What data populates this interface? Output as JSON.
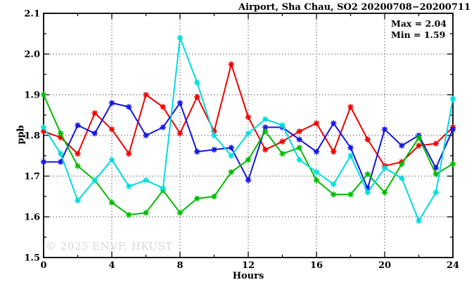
{
  "watermark": "© 2025 ENVF, HKUST",
  "chart_data": {
    "type": "line",
    "title": "Airport, Sha Chau, SO2 20200708−20200711",
    "xlabel": "Hours",
    "ylabel": "ppb",
    "xlim": [
      0,
      24
    ],
    "ylim": [
      1.5,
      2.1
    ],
    "legend_position": "none",
    "grid_on": true,
    "annotations": {
      "max_label": "Max = 2.04",
      "min_label": "Min = 1.59"
    },
    "x": [
      0,
      1,
      2,
      3,
      4,
      5,
      6,
      7,
      8,
      9,
      10,
      11,
      12,
      13,
      14,
      15,
      16,
      17,
      18,
      19,
      20,
      21,
      22,
      23,
      24
    ],
    "series": [
      {
        "name": "red",
        "color": "#ee0000",
        "values": [
          1.81,
          1.795,
          1.755,
          1.855,
          1.815,
          1.755,
          1.9,
          1.87,
          1.805,
          1.895,
          1.81,
          1.975,
          1.845,
          1.765,
          1.785,
          1.81,
          1.83,
          1.76,
          1.87,
          1.79,
          1.725,
          1.735,
          1.775,
          1.78,
          1.82
        ]
      },
      {
        "name": "blue",
        "color": "#1414e6",
        "values": [
          1.735,
          1.735,
          1.825,
          1.805,
          1.88,
          1.87,
          1.8,
          1.82,
          1.88,
          1.76,
          1.765,
          1.77,
          1.69,
          1.82,
          1.82,
          1.79,
          1.76,
          1.83,
          1.77,
          1.67,
          1.815,
          1.775,
          1.8,
          1.72,
          1.815
        ]
      },
      {
        "name": "green",
        "color": "#00bb00",
        "values": [
          1.9,
          1.805,
          1.725,
          1.69,
          1.635,
          1.605,
          1.61,
          1.665,
          1.61,
          1.645,
          1.65,
          1.71,
          1.74,
          1.81,
          1.755,
          1.77,
          1.69,
          1.655,
          1.655,
          1.705,
          1.66,
          1.73,
          1.795,
          1.705,
          1.73
        ]
      },
      {
        "name": "cyan",
        "color": "#00dcdc",
        "values": [
          1.82,
          1.755,
          1.64,
          1.69,
          1.74,
          1.675,
          1.69,
          1.67,
          2.04,
          1.93,
          1.8,
          1.75,
          1.805,
          1.84,
          1.825,
          1.74,
          1.71,
          1.68,
          1.75,
          1.66,
          1.72,
          1.695,
          1.59,
          1.66,
          1.89
        ]
      }
    ],
    "xticks": {
      "major": [
        0,
        4,
        8,
        12,
        16,
        20,
        24
      ],
      "labels": [
        "0",
        "4",
        "8",
        "12",
        "16",
        "20",
        "24"
      ],
      "minor": [
        2,
        6,
        10,
        14,
        18,
        22
      ]
    },
    "yticks": {
      "major": [
        1.5,
        1.6,
        1.7,
        1.8,
        1.9,
        2.0,
        2.1
      ],
      "labels": [
        "1.5",
        "1.6",
        "1.7",
        "1.8",
        "1.9",
        "2.0",
        "2.1"
      ],
      "minor": [
        1.55,
        1.65,
        1.75,
        1.85,
        1.95,
        2.05
      ]
    },
    "grid": {
      "x": [
        4,
        8,
        12,
        16,
        20
      ],
      "y": [
        1.6,
        1.7,
        1.8,
        1.9,
        2.0
      ]
    }
  }
}
